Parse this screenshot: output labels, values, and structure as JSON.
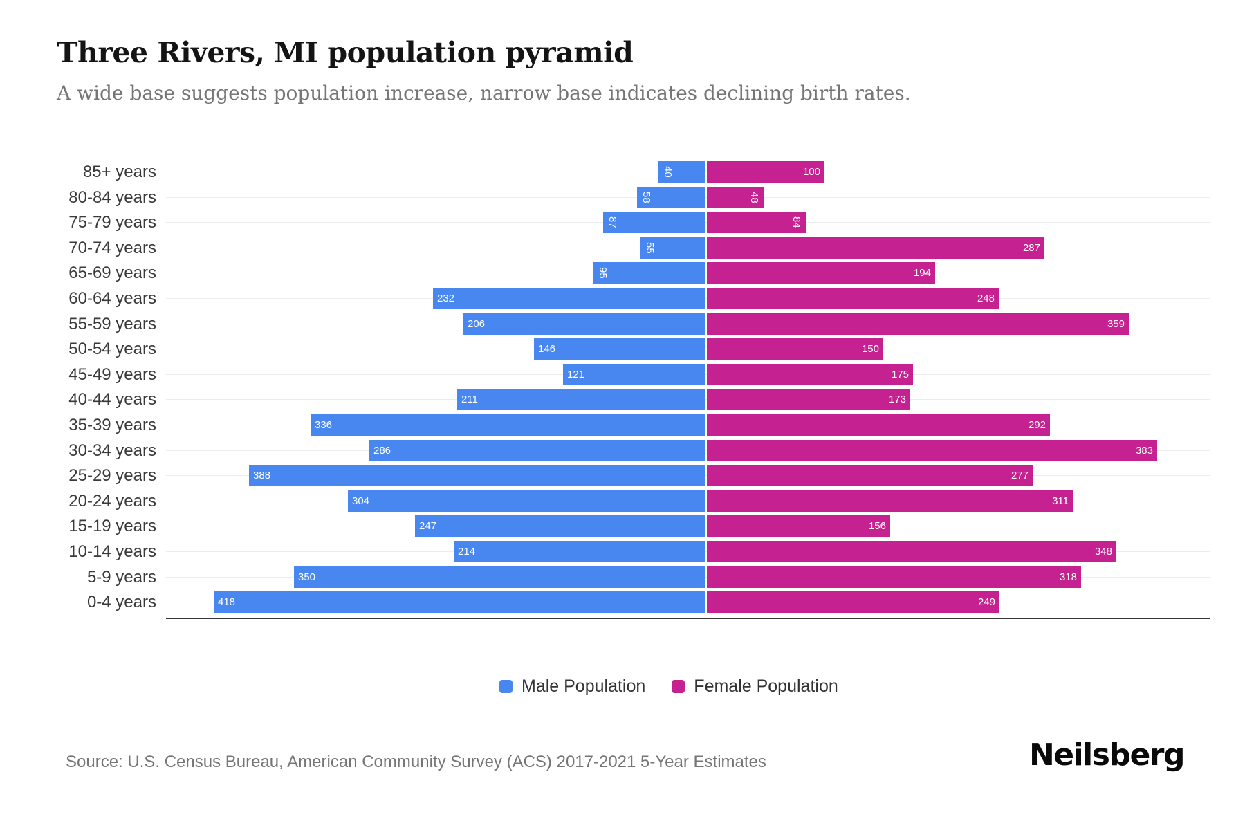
{
  "title": "Three Rivers, MI population pyramid",
  "subtitle": "A wide base suggests population increase, narrow base indicates declining birth rates.",
  "legend": {
    "male_label": "Male Population",
    "female_label": "Female Population"
  },
  "source": "Source: U.S. Census Bureau, American Community Survey (ACS) 2017-2021 5-Year Estimates",
  "brand": "Neilsberg",
  "colors": {
    "male": "#4787ef",
    "female": "#c62190"
  },
  "chart_data": {
    "type": "bar",
    "variant": "population-pyramid",
    "title": "Three Rivers, MI population pyramid",
    "categories": [
      "85+ years",
      "80-84 years",
      "75-79 years",
      "70-74 years",
      "65-69 years",
      "60-64 years",
      "55-59 years",
      "50-54 years",
      "45-49 years",
      "40-44 years",
      "35-39 years",
      "30-34 years",
      "25-29 years",
      "20-24 years",
      "15-19 years",
      "10-14 years",
      "5-9 years",
      "0-4 years"
    ],
    "series": [
      {
        "name": "Male Population",
        "values": [
          40,
          58,
          87,
          55,
          95,
          232,
          206,
          146,
          121,
          211,
          336,
          286,
          388,
          304,
          247,
          214,
          350,
          418
        ]
      },
      {
        "name": "Female Population",
        "values": [
          100,
          48,
          84,
          287,
          194,
          248,
          359,
          150,
          175,
          173,
          292,
          383,
          277,
          311,
          156,
          348,
          318,
          249
        ]
      }
    ],
    "grid": "horizontal-light",
    "legend_position": "bottom-center",
    "value_labels": "inside-ends, white, rotated 90deg when value < 100"
  }
}
